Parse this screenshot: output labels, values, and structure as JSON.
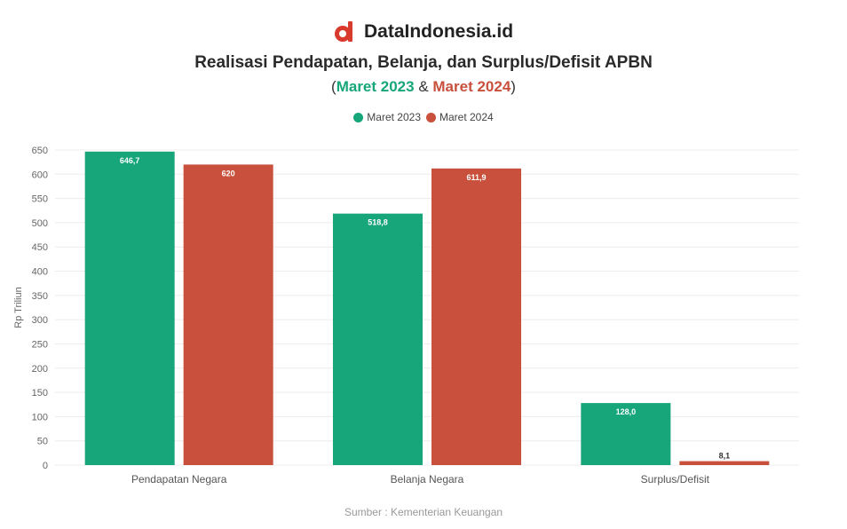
{
  "brand": {
    "name": "DataIndonesia.id",
    "logo_icon": "dataindonesia-logo-icon"
  },
  "subtitle": {
    "open": "(",
    "period1": "Maret 2023",
    "amp": " & ",
    "period2": "Maret 2024",
    "close": ")"
  },
  "colors": {
    "series1": "#17a57a",
    "series2": "#c8503c",
    "text": "#2f2f2f",
    "grid": "#ececec"
  },
  "source": "Sumber : Kementerian Keuangan",
  "chart_data": {
    "type": "bar",
    "title": "Realisasi Pendapatan, Belanja, dan Surplus/Defisit APBN",
    "ylabel": "Rp Triliun",
    "xlabel": "",
    "ylim": [
      0,
      650
    ],
    "yticks": [
      0,
      50,
      100,
      150,
      200,
      250,
      300,
      350,
      400,
      450,
      500,
      550,
      600,
      650
    ],
    "grid": true,
    "legend_position": "top-center",
    "categories": [
      "Pendapatan Negara",
      "Belanja Negara",
      "Surplus/Defisit"
    ],
    "series": [
      {
        "name": "Maret 2023",
        "color": "#17a57a",
        "values": [
          646.7,
          518.8,
          128.0
        ],
        "labels": [
          "646,7",
          "518,8",
          "128,0"
        ]
      },
      {
        "name": "Maret 2024",
        "color": "#c8503c",
        "values": [
          620,
          611.9,
          8.1
        ],
        "labels": [
          "620",
          "611,9",
          "8,1"
        ]
      }
    ]
  }
}
